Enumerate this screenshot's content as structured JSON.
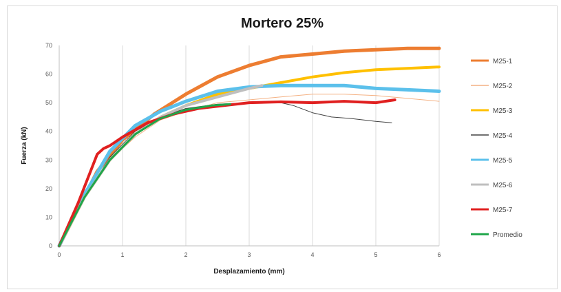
{
  "chart_data": {
    "type": "line",
    "title": "Mortero 25%",
    "xlabel": "Desplazamiento (mm)",
    "ylabel": "Fuerza (kN)",
    "xlim": [
      0,
      6
    ],
    "ylim": [
      0,
      70
    ],
    "xticks": [
      "0",
      "1",
      "2",
      "3",
      "4",
      "5",
      "6"
    ],
    "yticks": [
      "0",
      "10",
      "20",
      "30",
      "40",
      "50",
      "60",
      "70"
    ],
    "grid": "vertical",
    "legend_position": "right",
    "series": [
      {
        "name": "M25-1",
        "color": "#ED7D31",
        "width": 5,
        "points": [
          [
            0,
            0
          ],
          [
            0.3,
            13
          ],
          [
            0.6,
            26
          ],
          [
            1.0,
            37
          ],
          [
            1.5,
            46
          ],
          [
            2.0,
            53
          ],
          [
            2.5,
            59
          ],
          [
            3.0,
            63
          ],
          [
            3.5,
            66
          ],
          [
            4.0,
            67
          ],
          [
            4.5,
            68
          ],
          [
            5.0,
            68.5
          ],
          [
            5.5,
            69
          ],
          [
            6.0,
            69
          ]
        ]
      },
      {
        "name": "M25-2",
        "color": "#F4B183",
        "width": 1,
        "points": [
          [
            0,
            0
          ],
          [
            0.4,
            17
          ],
          [
            0.8,
            30
          ],
          [
            1.2,
            38
          ],
          [
            1.6,
            44
          ],
          [
            2.0,
            47
          ],
          [
            2.5,
            50
          ],
          [
            3.0,
            51
          ],
          [
            3.5,
            52
          ],
          [
            4.0,
            53
          ],
          [
            4.5,
            53
          ],
          [
            5.0,
            52.5
          ],
          [
            5.5,
            51.5
          ],
          [
            6.0,
            50.5
          ]
        ]
      },
      {
        "name": "M25-3",
        "color": "#FFC000",
        "width": 4,
        "points": [
          [
            0,
            0
          ],
          [
            0.4,
            17
          ],
          [
            0.8,
            30
          ],
          [
            1.2,
            39
          ],
          [
            1.6,
            45
          ],
          [
            2.0,
            49
          ],
          [
            2.5,
            53
          ],
          [
            3.0,
            55
          ],
          [
            3.5,
            57
          ],
          [
            4.0,
            59
          ],
          [
            4.5,
            60.5
          ],
          [
            5.0,
            61.5
          ],
          [
            5.5,
            62
          ],
          [
            6.0,
            62.5
          ]
        ]
      },
      {
        "name": "M25-4",
        "color": "#404040",
        "width": 1,
        "points": [
          [
            0,
            0
          ],
          [
            0.4,
            17
          ],
          [
            0.8,
            31
          ],
          [
            1.2,
            40
          ],
          [
            1.6,
            45
          ],
          [
            2.0,
            48
          ],
          [
            2.5,
            49.5
          ],
          [
            3.0,
            50
          ],
          [
            3.4,
            50.5
          ],
          [
            3.7,
            49
          ],
          [
            4.0,
            46.5
          ],
          [
            4.3,
            45
          ],
          [
            4.6,
            44.5
          ],
          [
            5.0,
            43.5
          ],
          [
            5.25,
            43
          ]
        ]
      },
      {
        "name": "M25-5",
        "color": "#5BC0EB",
        "width": 5,
        "points": [
          [
            0,
            0
          ],
          [
            0.4,
            18
          ],
          [
            0.8,
            33
          ],
          [
            1.2,
            42
          ],
          [
            1.6,
            47
          ],
          [
            2.0,
            50.5
          ],
          [
            2.5,
            54
          ],
          [
            3.0,
            55.5
          ],
          [
            3.5,
            56
          ],
          [
            4.0,
            56
          ],
          [
            4.5,
            56
          ],
          [
            5.0,
            55
          ],
          [
            5.5,
            54.5
          ],
          [
            6.0,
            54
          ]
        ]
      },
      {
        "name": "M25-6",
        "color": "#BFBFBF",
        "width": 4,
        "points": [
          [
            0,
            0
          ],
          [
            0.4,
            17
          ],
          [
            0.8,
            30
          ],
          [
            1.2,
            39
          ],
          [
            1.6,
            45
          ],
          [
            2.0,
            49
          ],
          [
            2.5,
            52
          ],
          [
            3.0,
            55
          ],
          [
            3.2,
            56
          ]
        ]
      },
      {
        "name": "M25-7",
        "color": "#E02020",
        "width": 4,
        "points": [
          [
            0,
            0
          ],
          [
            0.3,
            15
          ],
          [
            0.6,
            32
          ],
          [
            0.7,
            34
          ],
          [
            0.8,
            35
          ],
          [
            1.0,
            38
          ],
          [
            1.4,
            43
          ],
          [
            1.8,
            46
          ],
          [
            2.2,
            48
          ],
          [
            2.6,
            49
          ],
          [
            3.0,
            50
          ],
          [
            3.5,
            50.3
          ],
          [
            4.0,
            50
          ],
          [
            4.5,
            50.5
          ],
          [
            5.0,
            50
          ],
          [
            5.3,
            51
          ]
        ]
      },
      {
        "name": "Promedio",
        "color": "#1FA64A",
        "width": 3,
        "points": [
          [
            0,
            0
          ],
          [
            0.4,
            17
          ],
          [
            0.8,
            30
          ],
          [
            1.2,
            39
          ],
          [
            1.6,
            44.5
          ],
          [
            2.0,
            47.5
          ],
          [
            2.4,
            49
          ],
          [
            2.7,
            49.5
          ]
        ]
      }
    ]
  }
}
